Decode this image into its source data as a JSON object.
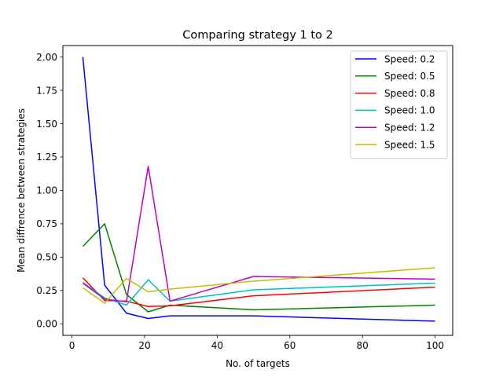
{
  "chart_data": {
    "type": "line",
    "title": "Comparing strategy 1 to 2",
    "xlabel": "No. of targets",
    "ylabel": "Mean diffrence between strategies",
    "xlim": [
      -2.5,
      104.85
    ],
    "ylim": [
      -0.0865,
      2.0855
    ],
    "xticks": [
      0,
      20,
      40,
      60,
      80,
      100
    ],
    "xtick_labels": [
      "0",
      "20",
      "40",
      "60",
      "80",
      "100"
    ],
    "yticks": [
      0.0,
      0.25,
      0.5,
      0.75,
      1.0,
      1.25,
      1.5,
      1.75,
      2.0
    ],
    "ytick_labels": [
      "0.00",
      "0.25",
      "0.50",
      "0.75",
      "1.00",
      "1.25",
      "1.50",
      "1.75",
      "2.00"
    ],
    "grid": false,
    "legend_position": "upper right",
    "x": [
      3,
      9,
      15,
      21,
      27,
      50,
      100
    ],
    "series": [
      {
        "name": "Speed: 0.2",
        "color": "#0000ff",
        "values": [
          2.0,
          0.29,
          0.08,
          0.04,
          0.06,
          0.06,
          0.02
        ]
      },
      {
        "name": "Speed: 0.5",
        "color": "#008000",
        "values": [
          0.58,
          0.75,
          0.22,
          0.09,
          0.14,
          0.105,
          0.14
        ]
      },
      {
        "name": "Speed: 0.8",
        "color": "#ff0000",
        "values": [
          0.345,
          0.175,
          0.17,
          0.13,
          0.135,
          0.21,
          0.275
        ]
      },
      {
        "name": "Speed: 1.0",
        "color": "#00bfbf",
        "values": [
          0.31,
          0.195,
          0.14,
          0.33,
          0.17,
          0.255,
          0.305
        ]
      },
      {
        "name": "Speed: 1.2",
        "color": "#bf00bf",
        "values": [
          0.305,
          0.185,
          0.165,
          1.18,
          0.17,
          0.355,
          0.335
        ]
      },
      {
        "name": "Speed: 1.5",
        "color": "#bfbf00",
        "values": [
          0.27,
          0.155,
          0.34,
          0.24,
          0.26,
          0.32,
          0.42
        ]
      }
    ]
  }
}
